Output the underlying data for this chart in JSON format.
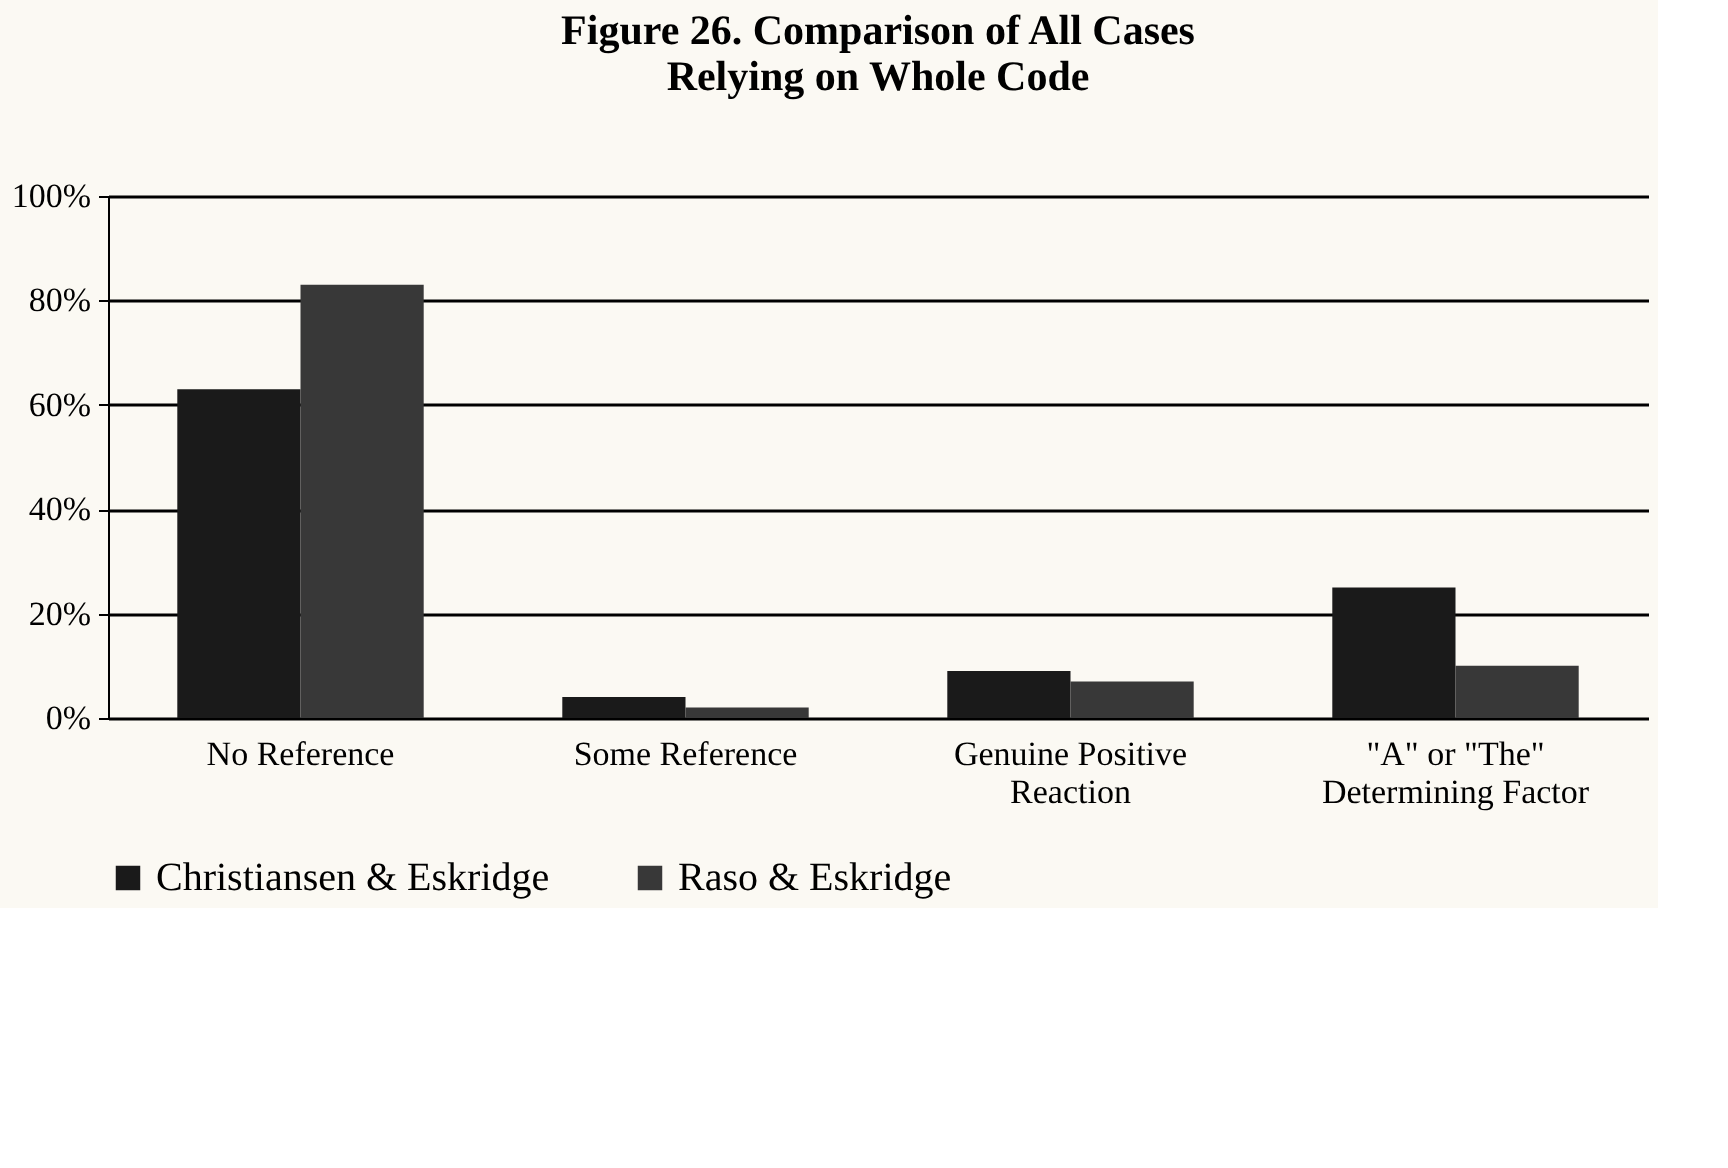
{
  "chart_data": {
    "type": "bar",
    "title": [
      "Figure 26.  Comparison of All Cases",
      "Relying on Whole Code"
    ],
    "categories": [
      "No Reference",
      "Some Reference",
      "Genuine Positive Reaction",
      "\"A\" or \"The\" Determining Factor"
    ],
    "series": [
      {
        "name": "Christiansen & Eskridge",
        "color": "#1a1a1a",
        "values": [
          63,
          4,
          9,
          25
        ]
      },
      {
        "name": "Raso & Eskridge",
        "color": "#383838",
        "values": [
          83,
          2,
          7,
          10
        ]
      }
    ],
    "ylim": [
      0,
      100
    ],
    "yticks": [
      {
        "value": 0,
        "label": "0%"
      },
      {
        "value": 20,
        "label": "20%"
      },
      {
        "value": 40,
        "label": "40%"
      },
      {
        "value": 60,
        "label": "60%"
      },
      {
        "value": 80,
        "label": "80%"
      },
      {
        "value": 100,
        "label": "100%"
      }
    ],
    "grid": "y",
    "legend": "bottom"
  }
}
